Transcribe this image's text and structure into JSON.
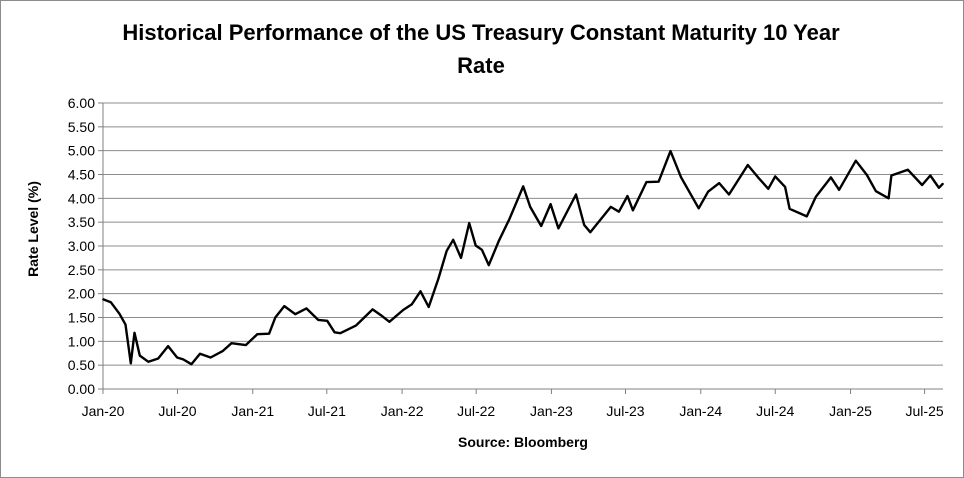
{
  "chart_data": {
    "type": "line",
    "title": "Historical Performance of the US Treasury Constant Maturity 10 Year Rate",
    "title_lines": [
      "Historical Performance of the US Treasury Constant Maturity 10 Year",
      "Rate"
    ],
    "xlabel": "Source: Bloomberg",
    "ylabel": "Rate Level (%)",
    "ylim": [
      0,
      6
    ],
    "xlim": [
      "2020-01-01",
      "2025-08-15"
    ],
    "yticks": [
      "0.00",
      "0.50",
      "1.00",
      "1.50",
      "2.00",
      "2.50",
      "3.00",
      "3.50",
      "4.00",
      "4.50",
      "5.00",
      "5.50",
      "6.00"
    ],
    "xticks": [
      {
        "label": "Jan-20",
        "date": "2020-01-01"
      },
      {
        "label": "Jul-20",
        "date": "2020-07-01"
      },
      {
        "label": "Jan-21",
        "date": "2021-01-01"
      },
      {
        "label": "Jul-21",
        "date": "2021-07-01"
      },
      {
        "label": "Jan-22",
        "date": "2022-01-01"
      },
      {
        "label": "Jul-22",
        "date": "2022-07-01"
      },
      {
        "label": "Jan-23",
        "date": "2023-01-01"
      },
      {
        "label": "Jul-23",
        "date": "2023-07-01"
      },
      {
        "label": "Jan-24",
        "date": "2024-01-01"
      },
      {
        "label": "Jul-24",
        "date": "2024-07-01"
      },
      {
        "label": "Jan-25",
        "date": "2025-01-01"
      },
      {
        "label": "Jul-25",
        "date": "2025-07-01"
      }
    ],
    "grid": true,
    "legend": "none",
    "series_color": "#000000",
    "points": [
      [
        "2020-01-02",
        1.88
      ],
      [
        "2020-01-20",
        1.82
      ],
      [
        "2020-02-10",
        1.58
      ],
      [
        "2020-02-25",
        1.35
      ],
      [
        "2020-03-09",
        0.54
      ],
      [
        "2020-03-18",
        1.18
      ],
      [
        "2020-03-31",
        0.7
      ],
      [
        "2020-04-21",
        0.57
      ],
      [
        "2020-05-15",
        0.64
      ],
      [
        "2020-06-08",
        0.9
      ],
      [
        "2020-06-30",
        0.66
      ],
      [
        "2020-07-15",
        0.62
      ],
      [
        "2020-08-04",
        0.52
      ],
      [
        "2020-08-25",
        0.74
      ],
      [
        "2020-09-20",
        0.66
      ],
      [
        "2020-10-20",
        0.8
      ],
      [
        "2020-11-10",
        0.96
      ],
      [
        "2020-12-15",
        0.92
      ],
      [
        "2021-01-12",
        1.15
      ],
      [
        "2021-02-10",
        1.16
      ],
      [
        "2021-02-25",
        1.5
      ],
      [
        "2021-03-19",
        1.74
      ],
      [
        "2021-04-15",
        1.57
      ],
      [
        "2021-05-12",
        1.69
      ],
      [
        "2021-06-10",
        1.45
      ],
      [
        "2021-07-02",
        1.43
      ],
      [
        "2021-07-20",
        1.19
      ],
      [
        "2021-08-03",
        1.17
      ],
      [
        "2021-09-10",
        1.33
      ],
      [
        "2021-10-21",
        1.67
      ],
      [
        "2021-11-10",
        1.55
      ],
      [
        "2021-12-01",
        1.41
      ],
      [
        "2022-01-04",
        1.66
      ],
      [
        "2022-01-25",
        1.78
      ],
      [
        "2022-02-15",
        2.05
      ],
      [
        "2022-03-07",
        1.72
      ],
      [
        "2022-03-31",
        2.32
      ],
      [
        "2022-04-20",
        2.9
      ],
      [
        "2022-05-06",
        3.13
      ],
      [
        "2022-05-25",
        2.75
      ],
      [
        "2022-06-14",
        3.48
      ],
      [
        "2022-06-30",
        3.01
      ],
      [
        "2022-07-15",
        2.92
      ],
      [
        "2022-08-01",
        2.6
      ],
      [
        "2022-08-25",
        3.1
      ],
      [
        "2022-09-20",
        3.56
      ],
      [
        "2022-10-24",
        4.25
      ],
      [
        "2022-11-10",
        3.82
      ],
      [
        "2022-12-07",
        3.42
      ],
      [
        "2022-12-30",
        3.88
      ],
      [
        "2023-01-18",
        3.37
      ],
      [
        "2023-03-02",
        4.08
      ],
      [
        "2023-03-22",
        3.44
      ],
      [
        "2023-04-06",
        3.29
      ],
      [
        "2023-05-26",
        3.82
      ],
      [
        "2023-06-15",
        3.72
      ],
      [
        "2023-07-06",
        4.05
      ],
      [
        "2023-07-19",
        3.75
      ],
      [
        "2023-08-21",
        4.34
      ],
      [
        "2023-09-20",
        4.35
      ],
      [
        "2023-10-19",
        4.99
      ],
      [
        "2023-11-14",
        4.44
      ],
      [
        "2023-12-27",
        3.79
      ],
      [
        "2024-01-19",
        4.14
      ],
      [
        "2024-02-15",
        4.32
      ],
      [
        "2024-03-10",
        4.08
      ],
      [
        "2024-04-25",
        4.7
      ],
      [
        "2024-05-20",
        4.44
      ],
      [
        "2024-06-14",
        4.2
      ],
      [
        "2024-07-01",
        4.46
      ],
      [
        "2024-07-25",
        4.24
      ],
      [
        "2024-08-05",
        3.78
      ],
      [
        "2024-09-16",
        3.62
      ],
      [
        "2024-10-08",
        4.03
      ],
      [
        "2024-11-14",
        4.44
      ],
      [
        "2024-12-04",
        4.18
      ],
      [
        "2025-01-14",
        4.79
      ],
      [
        "2025-02-10",
        4.49
      ],
      [
        "2025-03-04",
        4.15
      ],
      [
        "2025-04-04",
        4.0
      ],
      [
        "2025-04-11",
        4.48
      ],
      [
        "2025-05-21",
        4.6
      ],
      [
        "2025-06-25",
        4.28
      ],
      [
        "2025-07-15",
        4.48
      ],
      [
        "2025-08-05",
        4.22
      ],
      [
        "2025-08-14",
        4.3
      ]
    ]
  }
}
